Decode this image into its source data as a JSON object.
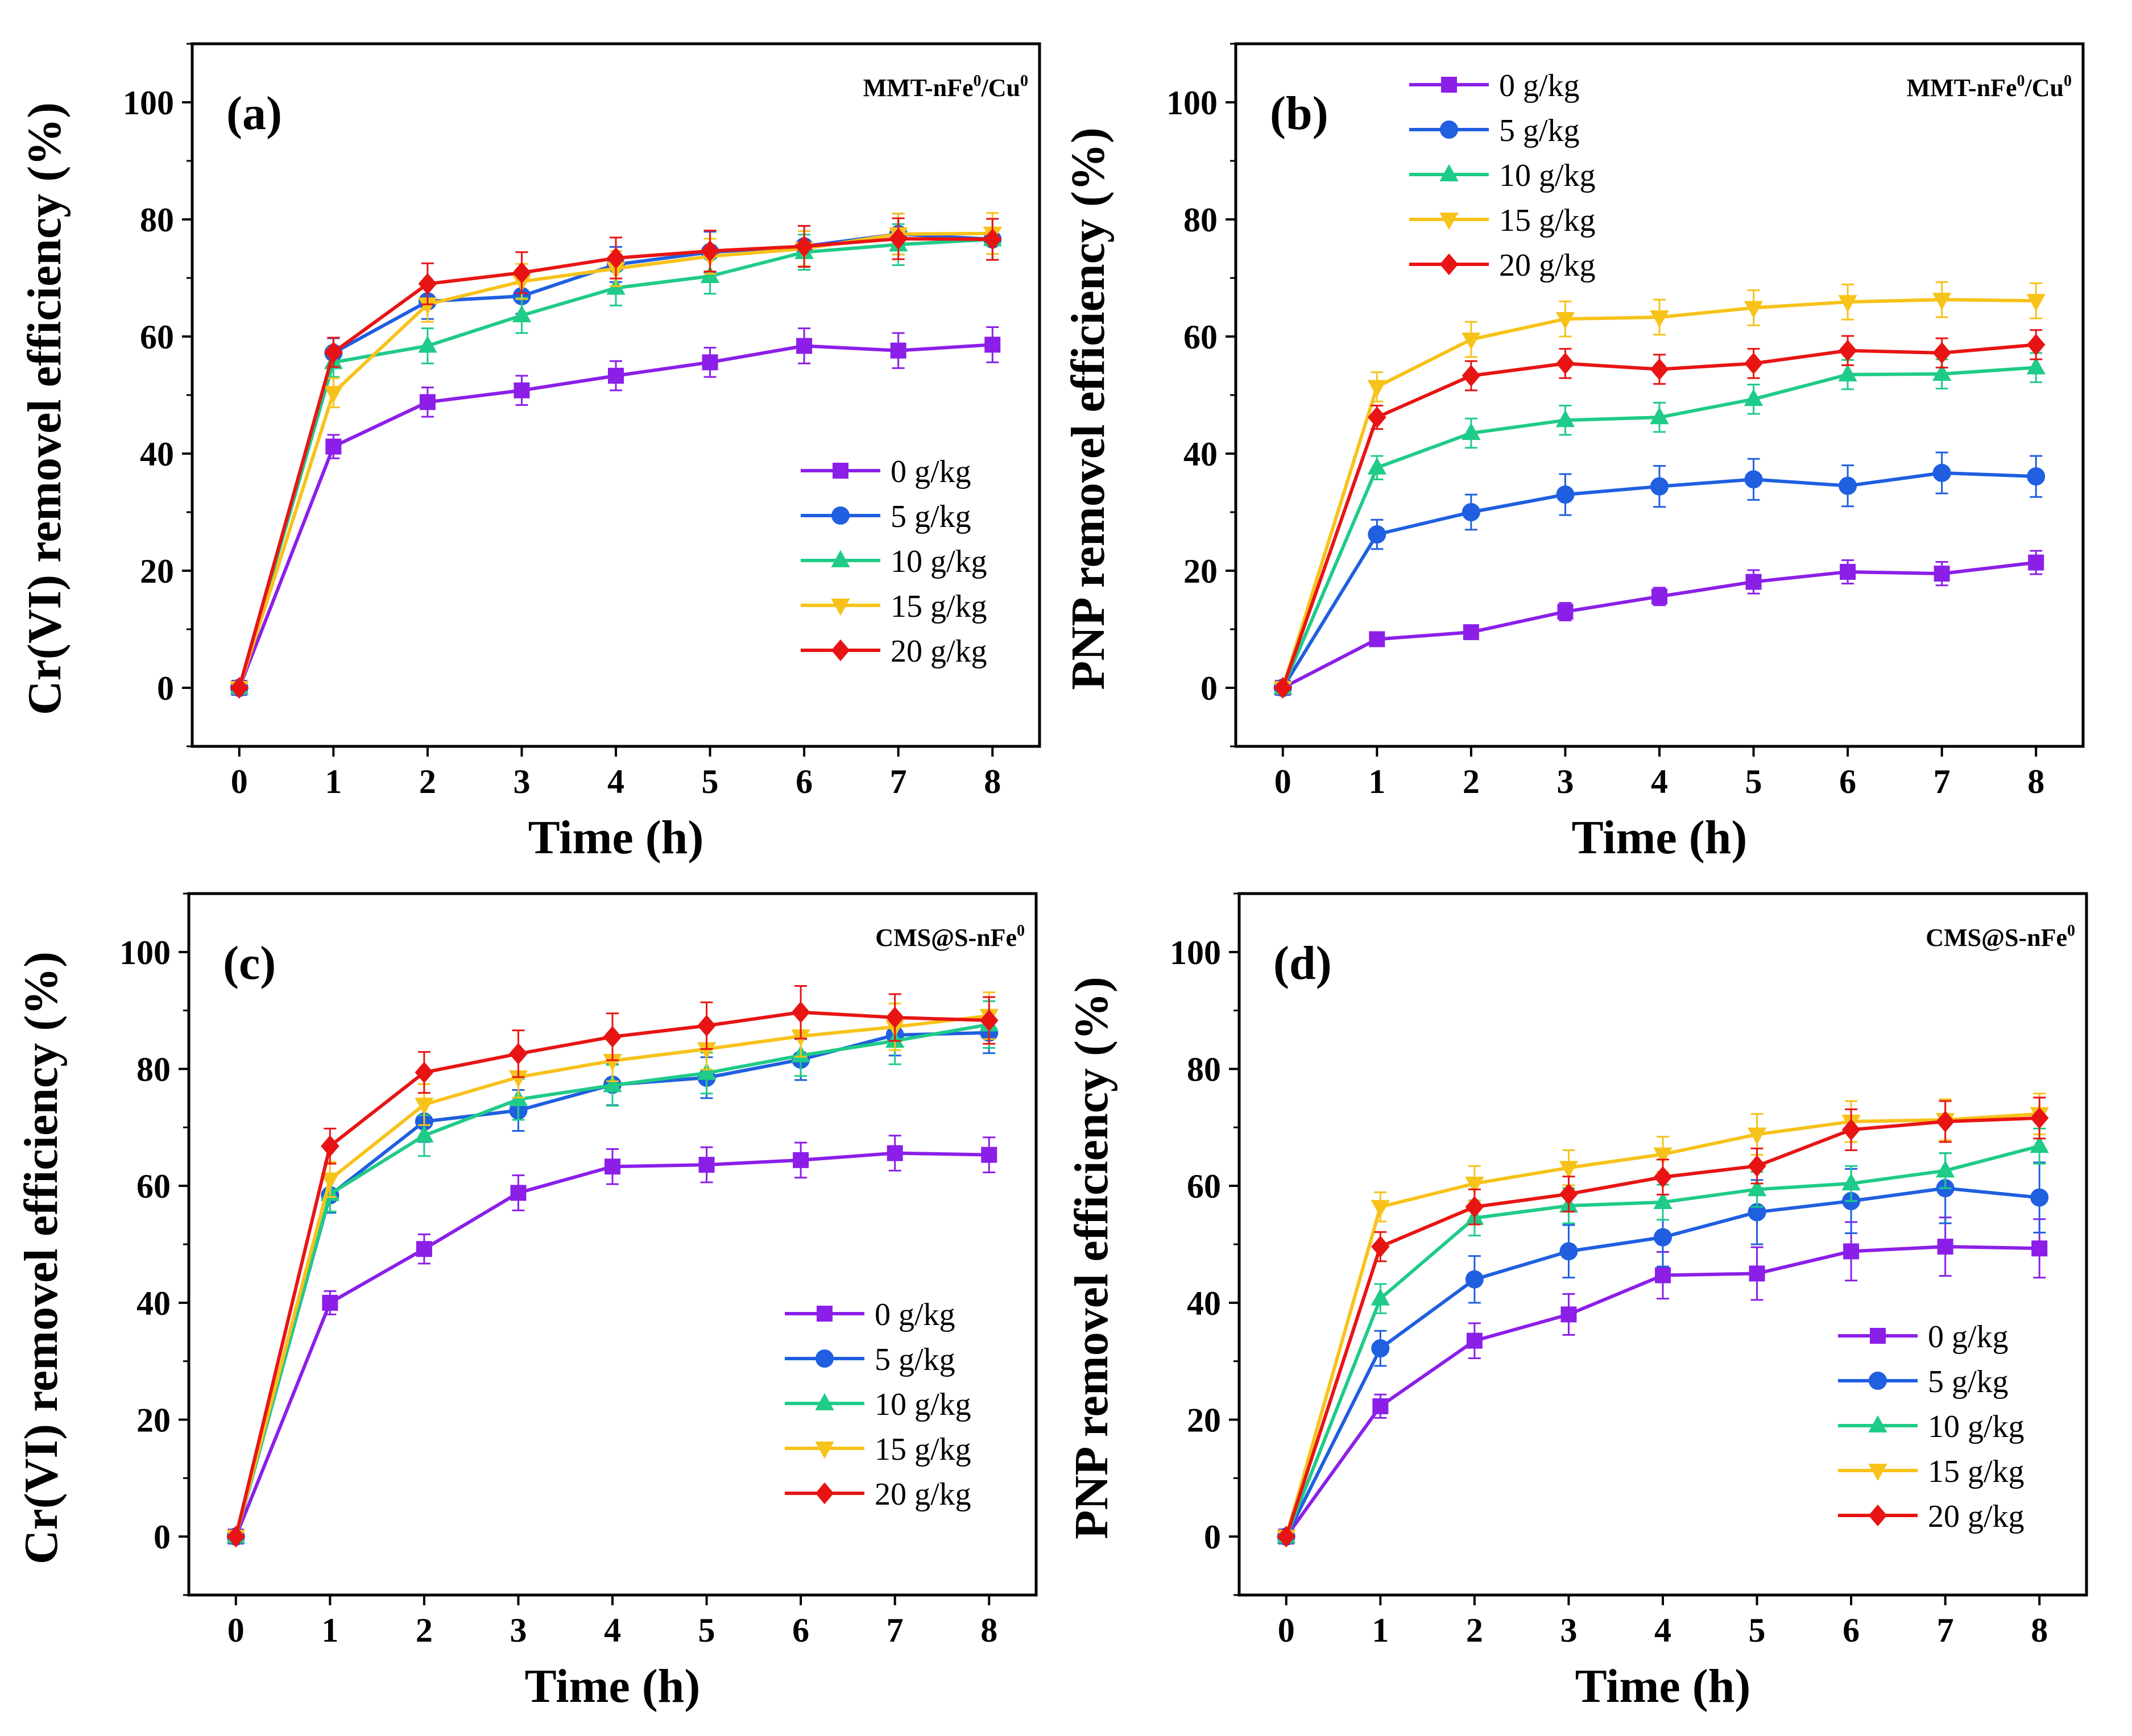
{
  "colors": {
    "0 g/kg": "#8B1FE8",
    "5 g/kg": "#1F5FE0",
    "10 g/kg": "#1FCB88",
    "15 g/kg": "#F7C21A",
    "20 g/kg": "#E81414"
  },
  "chart_data": [
    {
      "type": "line",
      "panel_label": "(a)",
      "material": "MMT-nFe",
      "material_sup1": "0",
      "material_mid": "/Cu",
      "material_sup2": "0",
      "xlabel": "Time (h)",
      "ylabel": "Cr(VI) removel efficiency (%)",
      "xlim": [
        -0.5,
        8.5
      ],
      "ylim": [
        -10,
        110
      ],
      "xticks": [
        0,
        1,
        2,
        3,
        4,
        5,
        6,
        7,
        8
      ],
      "yticks": [
        0,
        20,
        40,
        60,
        80,
        100
      ],
      "x": [
        0,
        1,
        2,
        3,
        4,
        5,
        6,
        7,
        8
      ],
      "legend_position": "bottom-right",
      "series": [
        {
          "name": "0 g/kg",
          "marker": "square",
          "values": [
            0,
            41.2,
            48.8,
            50.8,
            53.3,
            55.6,
            58.4,
            57.6,
            58.6
          ],
          "errors": [
            0,
            2,
            2.5,
            2.5,
            2.5,
            2.5,
            3,
            3,
            3
          ]
        },
        {
          "name": "5 g/kg",
          "marker": "circle",
          "values": [
            0,
            57.2,
            66.0,
            66.9,
            72.3,
            74.4,
            75.4,
            77.5,
            76.6
          ],
          "errors": [
            0,
            2.5,
            3,
            3,
            3,
            3.5,
            3.5,
            3.5,
            3.5
          ]
        },
        {
          "name": "10 g/kg",
          "marker": "triangle-up",
          "values": [
            0,
            55.6,
            58.4,
            63.6,
            68.3,
            70.3,
            74.4,
            75.7,
            76.6
          ],
          "errors": [
            0,
            2.5,
            3,
            3,
            3,
            3,
            3,
            3.5,
            3.5
          ]
        },
        {
          "name": "15 g/kg",
          "marker": "triangle-down",
          "values": [
            0,
            50.4,
            65.5,
            69.4,
            71.6,
            73.7,
            75.0,
            77.5,
            77.6
          ],
          "errors": [
            0,
            2.5,
            3,
            3,
            3,
            3,
            3,
            3.5,
            3.5
          ]
        },
        {
          "name": "20 g/kg",
          "marker": "diamond",
          "values": [
            0,
            57.3,
            69.0,
            70.9,
            73.4,
            74.6,
            75.4,
            76.7,
            76.6
          ],
          "errors": [
            0,
            2.5,
            3.5,
            3.5,
            3.5,
            3.5,
            3.5,
            3.5,
            3.5
          ]
        }
      ]
    },
    {
      "type": "line",
      "panel_label": "(b)",
      "material": "MMT-nFe",
      "material_sup1": "0",
      "material_mid": "/Cu",
      "material_sup2": "0",
      "xlabel": "Time (h)",
      "ylabel": "PNP removel efficiency (%)",
      "xlim": [
        -0.5,
        8.5
      ],
      "ylim": [
        -10,
        110
      ],
      "xticks": [
        0,
        1,
        2,
        3,
        4,
        5,
        6,
        7,
        8
      ],
      "yticks": [
        0,
        20,
        40,
        60,
        80,
        100
      ],
      "x": [
        0,
        1,
        2,
        3,
        4,
        5,
        6,
        7,
        8
      ],
      "legend_position": "top-left",
      "series": [
        {
          "name": "0 g/kg",
          "marker": "square",
          "values": [
            0,
            8.3,
            9.5,
            13.0,
            15.6,
            18.1,
            19.8,
            19.5,
            21.4
          ],
          "errors": [
            0,
            1,
            1,
            1.5,
            1.5,
            2,
            2,
            2,
            2
          ]
        },
        {
          "name": "5 g/kg",
          "marker": "circle",
          "values": [
            0,
            26.2,
            30.0,
            33.0,
            34.4,
            35.6,
            34.5,
            36.7,
            36.1
          ],
          "errors": [
            0,
            2.5,
            3,
            3.5,
            3.5,
            3.5,
            3.5,
            3.5,
            3.5
          ]
        },
        {
          "name": "10 g/kg",
          "marker": "triangle-up",
          "values": [
            0,
            37.6,
            43.5,
            45.7,
            46.2,
            49.3,
            53.5,
            53.6,
            54.7
          ],
          "errors": [
            0,
            2,
            2.5,
            2.5,
            2.5,
            2.5,
            2.5,
            2.5,
            2.5
          ]
        },
        {
          "name": "15 g/kg",
          "marker": "triangle-down",
          "values": [
            0,
            51.4,
            59.5,
            63.0,
            63.3,
            64.9,
            65.9,
            66.3,
            66.1
          ],
          "errors": [
            0,
            2.5,
            3,
            3,
            3,
            3,
            3,
            3,
            3
          ]
        },
        {
          "name": "20 g/kg",
          "marker": "diamond",
          "values": [
            0,
            46.2,
            53.3,
            55.4,
            54.4,
            55.4,
            57.6,
            57.2,
            58.6
          ],
          "errors": [
            0,
            2,
            2.5,
            2.5,
            2.5,
            2.5,
            2.5,
            2.5,
            2.5
          ]
        }
      ]
    },
    {
      "type": "line",
      "panel_label": "(c)",
      "material": "CMS@S-nFe",
      "material_sup1": "0",
      "material_mid": "",
      "material_sup2": "",
      "xlabel": "Time (h)",
      "ylabel": "Cr(VI) removel efficiency (%)",
      "xlim": [
        -0.5,
        8.5
      ],
      "ylim": [
        -10,
        110
      ],
      "xticks": [
        0,
        1,
        2,
        3,
        4,
        5,
        6,
        7,
        8
      ],
      "yticks": [
        0,
        20,
        40,
        60,
        80,
        100
      ],
      "x": [
        0,
        1,
        2,
        3,
        4,
        5,
        6,
        7,
        8
      ],
      "legend_position": "bottom-right",
      "series": [
        {
          "name": "0 g/kg",
          "marker": "square",
          "values": [
            0,
            40.0,
            49.2,
            58.8,
            63.3,
            63.6,
            64.4,
            65.6,
            65.3
          ],
          "errors": [
            0,
            2,
            2.5,
            3,
            3,
            3,
            3,
            3,
            3
          ]
        },
        {
          "name": "5 g/kg",
          "marker": "circle",
          "values": [
            0,
            58.4,
            71.0,
            72.9,
            77.3,
            78.5,
            81.6,
            85.8,
            86.2
          ],
          "errors": [
            0,
            3,
            3.5,
            3.5,
            3.5,
            3.5,
            3.5,
            3.5,
            3.5
          ]
        },
        {
          "name": "10 g/kg",
          "marker": "triangle-up",
          "values": [
            0,
            58.6,
            68.6,
            74.8,
            77.2,
            79.3,
            82.3,
            84.8,
            87.6
          ],
          "errors": [
            0,
            3,
            3.5,
            3.5,
            3.5,
            3.5,
            3.5,
            4,
            4
          ]
        },
        {
          "name": "15 g/kg",
          "marker": "triangle-down",
          "values": [
            0,
            61.1,
            73.9,
            78.6,
            81.4,
            83.4,
            85.6,
            87.2,
            89.1
          ],
          "errors": [
            0,
            3,
            3.5,
            3.5,
            3.5,
            3.5,
            3.5,
            4,
            4
          ]
        },
        {
          "name": "20 g/kg",
          "marker": "diamond",
          "values": [
            0,
            66.8,
            79.4,
            82.6,
            85.5,
            87.4,
            89.7,
            88.8,
            88.3
          ],
          "errors": [
            0,
            3,
            3.5,
            4,
            4,
            4,
            4.5,
            4,
            4
          ]
        }
      ]
    },
    {
      "type": "line",
      "panel_label": "(d)",
      "material": "CMS@S-nFe",
      "material_sup1": "0",
      "material_mid": "",
      "material_sup2": "",
      "xlabel": "Time (h)",
      "ylabel": "PNP removel efficiency (%)",
      "xlim": [
        -0.5,
        8.5
      ],
      "ylim": [
        -10,
        110
      ],
      "xticks": [
        0,
        1,
        2,
        3,
        4,
        5,
        6,
        7,
        8
      ],
      "yticks": [
        0,
        20,
        40,
        60,
        80,
        100
      ],
      "x": [
        0,
        1,
        2,
        3,
        4,
        5,
        6,
        7,
        8
      ],
      "legend_position": "bottom-right",
      "series": [
        {
          "name": "0 g/kg",
          "marker": "square",
          "values": [
            0,
            22.3,
            33.5,
            38.0,
            44.7,
            45.0,
            48.8,
            49.6,
            49.3
          ],
          "errors": [
            0,
            2,
            3,
            3.5,
            4,
            4.5,
            5,
            5,
            5
          ]
        },
        {
          "name": "5 g/kg",
          "marker": "circle",
          "values": [
            0,
            32.2,
            44.0,
            48.8,
            51.2,
            55.5,
            57.4,
            59.6,
            58.0
          ],
          "errors": [
            0,
            3,
            4,
            4.5,
            5,
            5.5,
            5.5,
            6,
            6
          ]
        },
        {
          "name": "10 g/kg",
          "marker": "triangle-up",
          "values": [
            0,
            40.7,
            54.5,
            56.6,
            57.2,
            59.4,
            60.4,
            62.6,
            66.8
          ],
          "errors": [
            0,
            2.5,
            3,
            3,
            3,
            3,
            3,
            3,
            3
          ]
        },
        {
          "name": "15 g/kg",
          "marker": "triangle-down",
          "values": [
            0,
            56.4,
            60.4,
            63.1,
            65.4,
            68.8,
            71.0,
            71.3,
            72.3
          ],
          "errors": [
            0,
            2.5,
            3,
            3,
            3,
            3.5,
            3.5,
            3.5,
            3.5
          ]
        },
        {
          "name": "20 g/kg",
          "marker": "diamond",
          "values": [
            0,
            49.6,
            56.4,
            58.6,
            61.5,
            63.4,
            69.6,
            71.0,
            71.6
          ],
          "errors": [
            0,
            2.5,
            3,
            3,
            3,
            3,
            3.5,
            3.5,
            3.5
          ]
        }
      ]
    }
  ]
}
